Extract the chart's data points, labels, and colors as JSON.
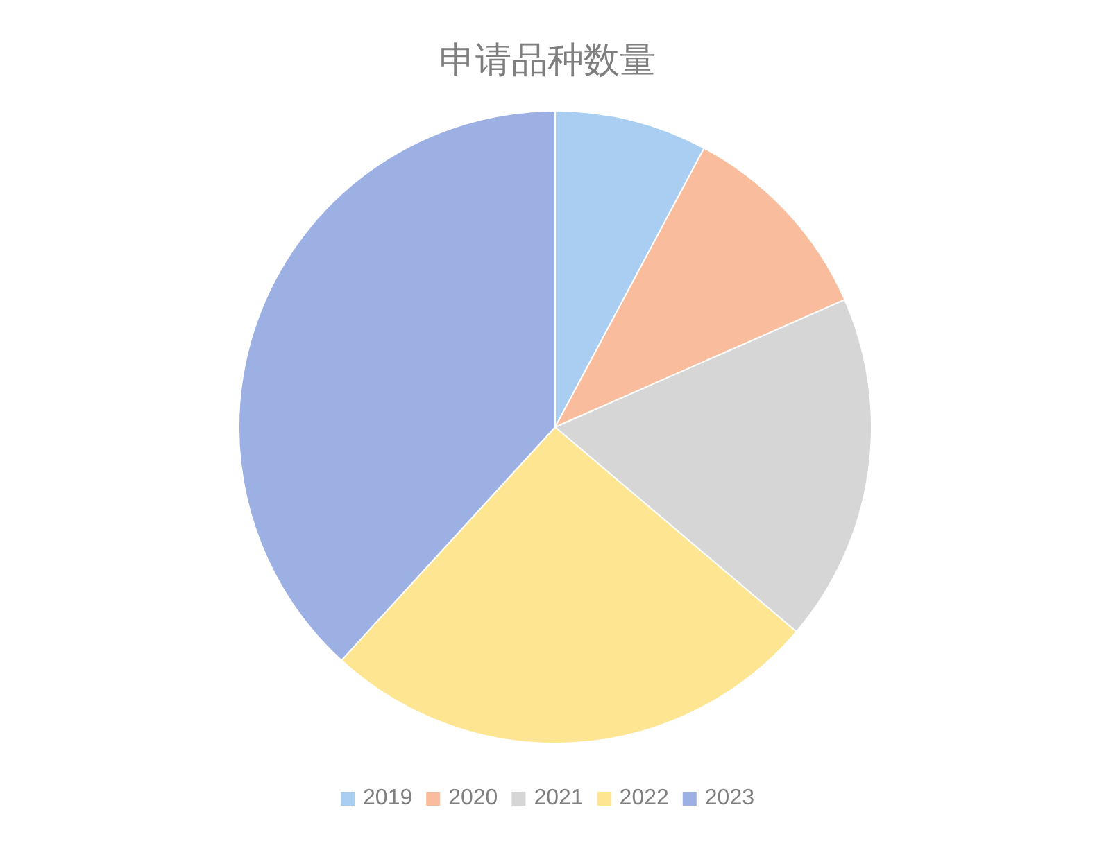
{
  "chart_data": {
    "type": "pie",
    "title": "申请品种数量",
    "categories": [
      "2019",
      "2020",
      "2021",
      "2022",
      "2023"
    ],
    "values": [
      7.8,
      10.6,
      17.8,
      25.6,
      38.2
    ],
    "colors": [
      "#aacdf2",
      "#f9bc9c",
      "#d6d6d6",
      "#fde592",
      "#9db0e3"
    ],
    "legend": "bottom"
  }
}
